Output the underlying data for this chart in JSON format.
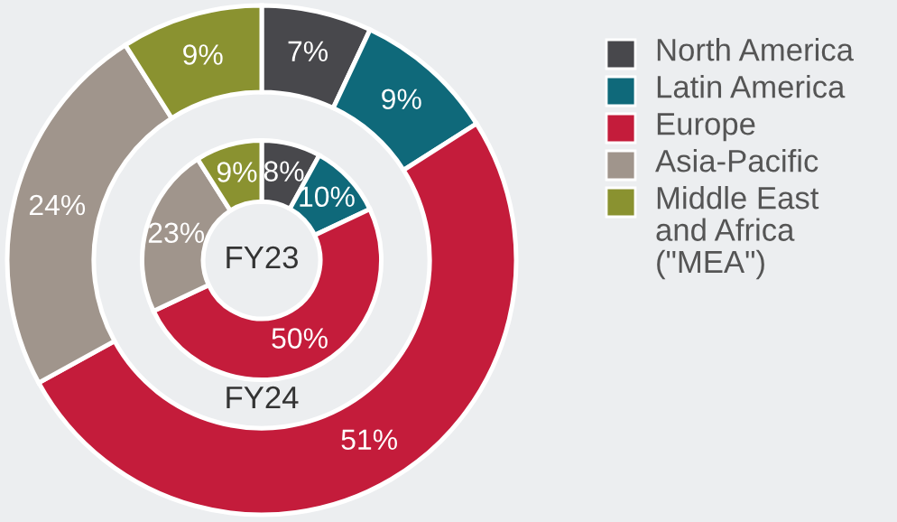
{
  "chart_data": {
    "type": "donut",
    "categories": [
      "North America",
      "Latin America",
      "Europe",
      "Asia-Pacific",
      "Middle East\nand Africa\n(\"MEA\")"
    ],
    "colors": [
      "#48484c",
      "#0f697a",
      "#c41c3b",
      "#a0958c",
      "#8a9230"
    ],
    "legend": "right",
    "series": [
      {
        "name": "FY24",
        "values": [
          7,
          9,
          51,
          24,
          9
        ],
        "value_labels": [
          "7%",
          "9%",
          "51%",
          "24%",
          "9%"
        ]
      },
      {
        "name": "FY23",
        "values": [
          8,
          10,
          50,
          23,
          9
        ],
        "value_labels": [
          "8%",
          "10%",
          "50%",
          "23%",
          "9%"
        ]
      }
    ]
  }
}
